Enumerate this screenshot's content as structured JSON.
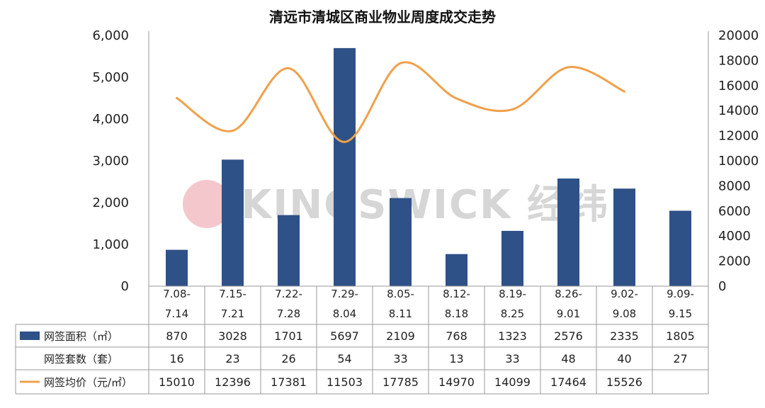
{
  "chart_data": {
    "type": "bar",
    "title": "清远市清城区商业物业周度成交走势",
    "categories": [
      [
        "7.08-",
        "7.14"
      ],
      [
        "7.15-",
        "7.21"
      ],
      [
        "7.22-",
        "7.28"
      ],
      [
        "7.29-",
        "8.04"
      ],
      [
        "8.05-",
        "8.11"
      ],
      [
        "8.12-",
        "8.18"
      ],
      [
        "8.19-",
        "8.25"
      ],
      [
        "8.26-",
        "9.01"
      ],
      [
        "9.02-",
        "9.08"
      ],
      [
        "9.09-",
        "9.15"
      ]
    ],
    "left_axis": {
      "ticks": [
        "0",
        "1,000",
        "2,000",
        "3,000",
        "4,000",
        "5,000",
        "6,000"
      ],
      "ylim": [
        0,
        6000
      ]
    },
    "right_axis": {
      "ticks": [
        "0",
        "2000",
        "4000",
        "6000",
        "8000",
        "10000",
        "12000",
        "14000",
        "16000",
        "18000",
        "20000"
      ],
      "ylim": [
        0,
        20000
      ]
    },
    "series": [
      {
        "name": "网签面积（㎡）",
        "type": "bar",
        "axis": "left",
        "color": "#2e5187",
        "values": [
          870,
          3028,
          1701,
          5697,
          2109,
          768,
          1323,
          2576,
          2335,
          1805
        ]
      },
      {
        "name": "网签套数（套）",
        "type": "table-only",
        "values": [
          16,
          23,
          26,
          54,
          33,
          13,
          33,
          48,
          40,
          27
        ]
      },
      {
        "name": "网签均价（元/㎡）",
        "type": "line",
        "axis": "right",
        "color": "#f0a04b",
        "values": [
          15010,
          12396,
          17381,
          11503,
          17785,
          14970,
          14099,
          17464,
          15526,
          null
        ]
      }
    ],
    "watermark": "KINGSWICK 经纬"
  }
}
